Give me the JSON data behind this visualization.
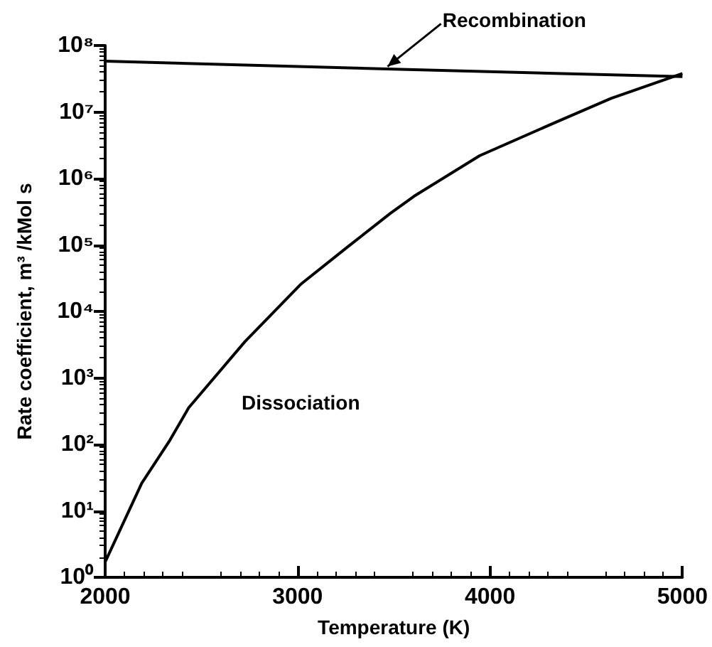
{
  "chart_data": {
    "type": "line",
    "xlabel": "Temperature (K)",
    "ylabel": "Rate coefficient, m³ /kMol s",
    "xlim": [
      2000,
      5000
    ],
    "xticks": [
      2000,
      3000,
      4000,
      5000
    ],
    "ylim": [
      1,
      100000000
    ],
    "log": "y",
    "yticks": [
      {
        "value": 1,
        "label": "10⁰"
      },
      {
        "value": 10,
        "label": "10¹"
      },
      {
        "value": 100,
        "label": "10²"
      },
      {
        "value": 1000,
        "label": "10³"
      },
      {
        "value": 10000,
        "label": "10⁴"
      },
      {
        "value": 100000,
        "label": "10⁵"
      },
      {
        "value": 1000000,
        "label": "10⁶"
      },
      {
        "value": 10000000,
        "label": "10⁷"
      },
      {
        "value": 100000000,
        "label": "10⁸"
      }
    ],
    "grid": false,
    "marker": "none",
    "line_style": "solid",
    "series": [
      {
        "color": "#000000",
        "x": [
          2000,
          3500,
          5000
        ],
        "values": [
          58000000,
          44000000,
          34000000
        ]
      },
      {
        "color": "#000000",
        "x": [
          2000,
          2190,
          2336,
          2434,
          2726,
          3019,
          3263,
          3483,
          3605,
          3946,
          4336,
          4629,
          5000
        ],
        "values": [
          1.7,
          26,
          115,
          355,
          3500,
          26000,
          95000,
          300000,
          540000,
          2200000,
          6900000,
          16000000,
          38000000
        ]
      }
    ],
    "annotations": [
      {
        "text": "Recombination",
        "x": 3450,
        "y": 44000000
      },
      "Dissociation"
    ]
  }
}
